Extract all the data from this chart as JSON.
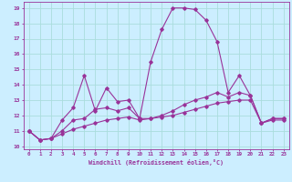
{
  "background_color": "#cceeff",
  "grid_color": "#aadddd",
  "line_color": "#993399",
  "xlabel": "Windchill (Refroidissement éolien,°C)",
  "xlim": [
    -0.5,
    23.5
  ],
  "ylim": [
    9.8,
    19.4
  ],
  "yticks": [
    10,
    11,
    12,
    13,
    14,
    15,
    16,
    17,
    18,
    19
  ],
  "xticks": [
    0,
    1,
    2,
    3,
    4,
    5,
    6,
    7,
    8,
    9,
    10,
    11,
    12,
    13,
    14,
    15,
    16,
    17,
    18,
    19,
    20,
    21,
    22,
    23
  ],
  "line1_x": [
    0,
    1,
    2,
    3,
    4,
    5,
    6,
    7,
    8,
    9,
    10,
    11,
    12,
    13,
    14,
    15,
    16,
    17,
    18,
    19,
    20,
    21,
    22,
    23
  ],
  "line1_y": [
    11.0,
    10.4,
    10.5,
    11.7,
    12.5,
    14.6,
    12.3,
    13.8,
    12.9,
    13.0,
    11.8,
    15.5,
    17.6,
    19.0,
    19.0,
    18.9,
    18.2,
    16.8,
    13.5,
    14.6,
    13.3,
    11.5,
    11.8,
    11.8
  ],
  "line2_x": [
    0,
    1,
    2,
    3,
    4,
    5,
    6,
    7,
    8,
    9,
    10,
    11,
    12,
    13,
    14,
    15,
    16,
    17,
    18,
    19,
    20,
    21,
    22,
    23
  ],
  "line2_y": [
    11.0,
    10.4,
    10.5,
    11.0,
    11.7,
    11.8,
    12.4,
    12.5,
    12.3,
    12.5,
    11.8,
    11.8,
    12.0,
    12.3,
    12.7,
    13.0,
    13.2,
    13.5,
    13.2,
    13.5,
    13.3,
    11.5,
    11.8,
    11.8
  ],
  "line3_x": [
    0,
    1,
    2,
    3,
    4,
    5,
    6,
    7,
    8,
    9,
    10,
    11,
    12,
    13,
    14,
    15,
    16,
    17,
    18,
    19,
    20,
    21,
    22,
    23
  ],
  "line3_y": [
    11.0,
    10.4,
    10.5,
    10.8,
    11.1,
    11.3,
    11.5,
    11.7,
    11.8,
    11.9,
    11.7,
    11.8,
    11.9,
    12.0,
    12.2,
    12.4,
    12.6,
    12.8,
    12.9,
    13.0,
    13.0,
    11.5,
    11.7,
    11.7
  ]
}
